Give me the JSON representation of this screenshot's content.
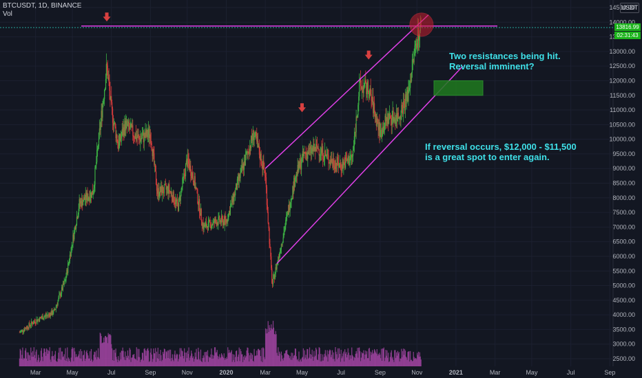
{
  "header": {
    "symbol_line": "BTCUSDT, 1D, BINANCE",
    "vol_label": "Vol",
    "currency": "USDT"
  },
  "price_tags": {
    "last_price": "13816.99",
    "countdown": "02:31:43"
  },
  "annotations": {
    "resistance": "Two resistances being hit.\nReversal imminent?",
    "entry": "If reversal occurs, $12,000 - $11,500\nis a great spot to enter again."
  },
  "colors": {
    "background": "#131722",
    "up": "#26a69a",
    "down": "#ef5350",
    "candle_up": "#3cb043",
    "candle_down": "#d63b3b",
    "volume": "#a646a6",
    "trendline": "#e040e8",
    "annotation_text": "#3fe0e8",
    "entry_zone": "#1f7a1f",
    "arrow": "#d84040",
    "circle": "#c81e2e"
  },
  "chart_data": {
    "type": "candlestick",
    "title": "BTCUSDT, 1D, BINANCE",
    "price_axis": {
      "min": 2500,
      "max": 14500,
      "ticks": [
        2500,
        3000,
        3500,
        4000,
        4500,
        5000,
        5500,
        6000,
        6500,
        7000,
        7500,
        8000,
        8500,
        9000,
        9500,
        10000,
        10500,
        11000,
        11500,
        12000,
        12500,
        13000,
        13500,
        14000,
        14500
      ],
      "tick_labels": [
        "2500.00",
        "3000.00",
        "3500.00",
        "4000.00",
        "4500.00",
        "5000.00",
        "5500.00",
        "6000.00",
        "6500.00",
        "7000.00",
        "7500.00",
        "8000.00",
        "8500.00",
        "9000.00",
        "9500.00",
        "10000.00",
        "10500.00",
        "11000.00",
        "11500.00",
        "12000.00",
        "12500.00",
        "13000.00",
        "13500.00",
        "14000.00",
        "14500.00"
      ]
    },
    "time_axis": {
      "labels": [
        "Mar",
        "May",
        "Jul",
        "Sep",
        "Nov",
        "2020",
        "Mar",
        "May",
        "Jul",
        "Sep",
        "Nov",
        "2021",
        "Mar",
        "May",
        "Jul",
        "Sep"
      ],
      "label_months": [
        2019.17,
        2019.33,
        2019.5,
        2019.67,
        2019.83,
        2020.0,
        2020.17,
        2020.33,
        2020.5,
        2020.67,
        2020.83,
        2021.0,
        2021.17,
        2021.33,
        2021.5,
        2021.67
      ]
    },
    "price_path": [
      [
        2019.1,
        3400
      ],
      [
        2019.17,
        3800
      ],
      [
        2019.25,
        4100
      ],
      [
        2019.3,
        5200
      ],
      [
        2019.36,
        7800
      ],
      [
        2019.42,
        8200
      ],
      [
        2019.48,
        12500
      ],
      [
        2019.5,
        11000
      ],
      [
        2019.53,
        9800
      ],
      [
        2019.56,
        10500
      ],
      [
        2019.62,
        10000
      ],
      [
        2019.67,
        10200
      ],
      [
        2019.7,
        8200
      ],
      [
        2019.75,
        8300
      ],
      [
        2019.79,
        7700
      ],
      [
        2019.83,
        9300
      ],
      [
        2019.86,
        8600
      ],
      [
        2019.9,
        7000
      ],
      [
        2019.96,
        7200
      ],
      [
        2020.0,
        7200
      ],
      [
        2020.05,
        8500
      ],
      [
        2020.12,
        10200
      ],
      [
        2020.17,
        8800
      ],
      [
        2020.2,
        5000
      ],
      [
        2020.25,
        6800
      ],
      [
        2020.3,
        8700
      ],
      [
        2020.34,
        9500
      ],
      [
        2020.4,
        9700
      ],
      [
        2020.45,
        9300
      ],
      [
        2020.5,
        9100
      ],
      [
        2020.55,
        9400
      ],
      [
        2020.58,
        11800
      ],
      [
        2020.62,
        11700
      ],
      [
        2020.67,
        10200
      ],
      [
        2020.7,
        10700
      ],
      [
        2020.75,
        10800
      ],
      [
        2020.79,
        11500
      ],
      [
        2020.83,
        13500
      ],
      [
        2020.85,
        13800
      ]
    ],
    "markers": [
      {
        "type": "resistance-line",
        "y": 13870
      },
      {
        "type": "arrow",
        "x": 2019.48,
        "y": 14000
      },
      {
        "type": "arrow",
        "x": 2020.33,
        "y": 10900
      },
      {
        "type": "arrow",
        "x": 2020.62,
        "y": 12700
      }
    ],
    "entry_zone": {
      "y_range": [
        11500,
        12000
      ]
    },
    "last_price": 13816.99
  }
}
